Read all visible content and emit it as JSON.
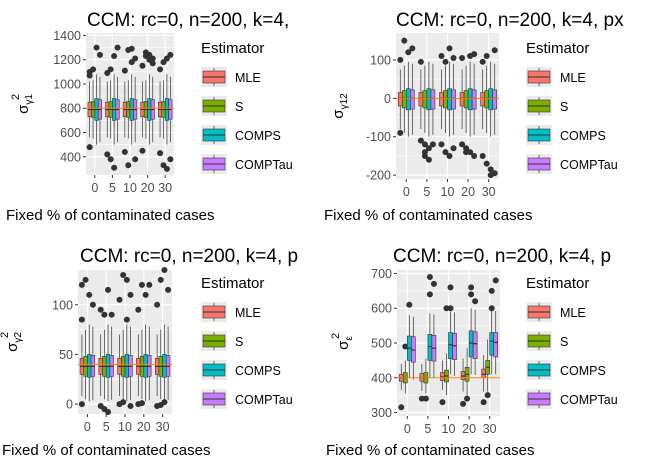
{
  "legend": {
    "title": "Estimator",
    "entries": [
      {
        "name": "MLE",
        "color": "#F8766D"
      },
      {
        "name": "S",
        "color": "#7CAE00"
      },
      {
        "name": "COMPS",
        "color": "#00BFC4"
      },
      {
        "name": "COMPTau",
        "color": "#C77CFF"
      }
    ]
  },
  "colors": {
    "panel_bg": "#EBEBEB",
    "grid": "#FFFFFF",
    "true_line": "#FF7F00",
    "outlier": "#333333",
    "box_stroke": "#333333"
  },
  "chart_data": [
    {
      "type": "box",
      "title": "CCM: rc=0, n=200, k=4,",
      "xlabel": "Fixed % of contaminated cases",
      "ylabel": {
        "base": "σ",
        "sup": "2",
        "sub": "γ1"
      },
      "categories": [
        "0",
        "5",
        "10",
        "20",
        "30"
      ],
      "ylim": [
        250,
        1420
      ],
      "yticks": [
        400,
        600,
        800,
        1000,
        1200,
        1400
      ],
      "reference_line": 800,
      "series": [
        {
          "name": "MLE",
          "q1": [
            730,
            730,
            730,
            730,
            730
          ],
          "median": [
            790,
            790,
            790,
            790,
            790
          ],
          "q3": [
            850,
            850,
            850,
            850,
            850
          ],
          "low": [
            560,
            560,
            560,
            560,
            560
          ],
          "high": [
            1020,
            1020,
            1020,
            1020,
            1020
          ],
          "outliers": [
            [
              480,
              1070,
              1100
            ],
            [
              420,
              1090
            ],
            [
              440,
              1110
            ],
            [
              450,
              1150
            ],
            [
              430,
              1120
            ]
          ]
        },
        {
          "name": "S",
          "q1": [
            725,
            725,
            725,
            725,
            725
          ],
          "median": [
            790,
            790,
            790,
            790,
            790
          ],
          "q3": [
            855,
            855,
            855,
            855,
            855
          ],
          "low": [
            550,
            550,
            550,
            550,
            550
          ],
          "high": [
            1030,
            1030,
            1030,
            1030,
            1030
          ],
          "outliers": [
            [
              1120
            ],
            [
              380,
              1120
            ],
            [
              330,
              1280
            ],
            [
              1230,
              1260
            ],
            [
              330,
              1180
            ]
          ]
        },
        {
          "name": "COMPS",
          "q1": [
            700,
            700,
            700,
            700,
            700
          ],
          "median": [
            790,
            790,
            790,
            790,
            790
          ],
          "q3": [
            880,
            880,
            880,
            880,
            880
          ],
          "low": [
            500,
            500,
            500,
            500,
            500
          ],
          "high": [
            1080,
            1080,
            1080,
            1080,
            1080
          ],
          "outliers": [
            [
              1300
            ],
            [
              310,
              1230
            ],
            [
              1290,
              1180
            ],
            [
              1200,
              1240
            ],
            [
              300,
              1210
            ]
          ]
        },
        {
          "name": "COMPTau",
          "q1": [
            710,
            710,
            710,
            710,
            710
          ],
          "median": [
            790,
            790,
            790,
            790,
            790
          ],
          "q3": [
            870,
            870,
            870,
            870,
            870
          ],
          "low": [
            520,
            520,
            520,
            520,
            520
          ],
          "high": [
            1060,
            1060,
            1060,
            1060,
            1060
          ],
          "outliers": [
            [
              1240
            ],
            [
              1300
            ],
            [
              380,
              1210
            ],
            [
              1170,
              1210
            ],
            [
              380,
              1240
            ]
          ]
        }
      ]
    },
    {
      "type": "box",
      "title": "CCM: rc=0, n=200, k=4, px",
      "xlabel": "Fixed % of contaminated cases",
      "ylabel": {
        "base": "σ",
        "sup": "",
        "sub": "γ12"
      },
      "categories": [
        "0",
        "5",
        "10",
        "20",
        "30"
      ],
      "ylim": [
        -210,
        170
      ],
      "yticks": [
        -200,
        -100,
        0,
        100
      ],
      "reference_line": 0,
      "series": [
        {
          "name": "MLE",
          "q1": [
            -20,
            -20,
            -20,
            -20,
            -20
          ],
          "median": [
            0,
            0,
            0,
            0,
            0
          ],
          "q3": [
            15,
            15,
            15,
            15,
            15
          ],
          "low": [
            -80,
            -80,
            -80,
            -80,
            -80
          ],
          "high": [
            75,
            75,
            75,
            75,
            75
          ],
          "outliers": [
            [
              -90,
              100
            ],
            [
              -110,
              95
            ],
            [
              -120,
              110
            ],
            [
              -120,
              105
            ],
            [
              -150,
              95
            ]
          ]
        },
        {
          "name": "S",
          "q1": [
            -25,
            -25,
            -25,
            -25,
            -25
          ],
          "median": [
            0,
            0,
            0,
            0,
            0
          ],
          "q3": [
            20,
            20,
            20,
            20,
            20
          ],
          "low": [
            -90,
            -90,
            -90,
            -90,
            -90
          ],
          "high": [
            85,
            85,
            85,
            85,
            85
          ],
          "outliers": [
            [
              150
            ],
            [
              -150,
              -140,
              -120
            ],
            [
              95,
              -140
            ],
            [
              -130,
              -140
            ],
            [
              -170,
              110
            ]
          ]
        },
        {
          "name": "COMPS",
          "q1": [
            -30,
            -30,
            -30,
            -30,
            -30
          ],
          "median": [
            0,
            0,
            0,
            0,
            0
          ],
          "q3": [
            25,
            25,
            25,
            25,
            25
          ],
          "low": [
            -100,
            -100,
            -100,
            -100,
            -100
          ],
          "high": [
            95,
            95,
            95,
            95,
            95
          ],
          "outliers": [
            [
              120
            ],
            [
              -160,
              -130
            ],
            [
              130,
              -150
            ],
            [
              110,
              -140
            ],
            [
              -185,
              -200
            ]
          ]
        },
        {
          "name": "COMPTau",
          "q1": [
            -28,
            -28,
            -28,
            -28,
            -28
          ],
          "median": [
            0,
            0,
            0,
            0,
            0
          ],
          "q3": [
            22,
            22,
            22,
            22,
            22
          ],
          "low": [
            -95,
            -95,
            -95,
            -95,
            -95
          ],
          "high": [
            90,
            90,
            90,
            90,
            90
          ],
          "outliers": [
            [
              130
            ],
            [
              -120
            ],
            [
              -130,
              105
            ],
            [
              -150,
              115
            ],
            [
              -195,
              125
            ]
          ]
        }
      ]
    },
    {
      "type": "box",
      "title": "CCM: rc=0, n=200, k=4, p",
      "xlabel": "Fixed % of contaminated cases",
      "ylabel": {
        "base": "σ",
        "sup": "2",
        "sub": "γ2"
      },
      "categories": [
        "0",
        "5",
        "10",
        "20",
        "30"
      ],
      "ylim": [
        -10,
        135
      ],
      "yticks": [
        0,
        50,
        100
      ],
      "reference_line": 40,
      "series": [
        {
          "name": "MLE",
          "q1": [
            30,
            30,
            30,
            30,
            30
          ],
          "median": [
            38,
            38,
            38,
            38,
            38
          ],
          "q3": [
            46,
            46,
            46,
            46,
            46
          ],
          "low": [
            8,
            8,
            8,
            8,
            8
          ],
          "high": [
            70,
            70,
            70,
            70,
            70
          ],
          "outliers": [
            [
              0,
              85,
              120
            ],
            [
              -2,
              95
            ],
            [
              0,
              105
            ],
            [
              0,
              95
            ],
            [
              -2,
              100
            ]
          ]
        },
        {
          "name": "S",
          "q1": [
            28,
            28,
            28,
            28,
            28
          ],
          "median": [
            38,
            38,
            38,
            38,
            38
          ],
          "q3": [
            48,
            48,
            48,
            48,
            48
          ],
          "low": [
            5,
            5,
            5,
            5,
            5
          ],
          "high": [
            75,
            75,
            75,
            75,
            75
          ],
          "outliers": [
            [
              125
            ],
            [
              -5,
              90
            ],
            [
              2,
              130
            ],
            [
              1,
              120
            ],
            [
              -1,
              125
            ]
          ]
        },
        {
          "name": "COMPS",
          "q1": [
            27,
            27,
            27,
            27,
            27
          ],
          "median": [
            38,
            38,
            38,
            38,
            38
          ],
          "q3": [
            50,
            50,
            50,
            50,
            50
          ],
          "low": [
            3,
            3,
            3,
            3,
            3
          ],
          "high": [
            80,
            80,
            80,
            80,
            80
          ],
          "outliers": [
            [
              110
            ],
            [
              -8,
              115
            ],
            [
              125,
              85
            ],
            [
              110
            ],
            [
              2,
              135
            ]
          ]
        },
        {
          "name": "COMPTau",
          "q1": [
            28,
            28,
            28,
            28,
            28
          ],
          "median": [
            38,
            38,
            38,
            38,
            38
          ],
          "q3": [
            49,
            49,
            49,
            49,
            49
          ],
          "low": [
            4,
            4,
            4,
            4,
            4
          ],
          "high": [
            78,
            78,
            78,
            78,
            78
          ],
          "outliers": [
            [
              100
            ],
            [
              90
            ],
            [
              -2,
              110
            ],
            [
              120
            ],
            [
              115
            ]
          ]
        }
      ]
    },
    {
      "type": "box",
      "title": "CCM: rc=0, n=200, k=4, p",
      "xlabel": "Fixed % of contaminated cases",
      "ylabel": {
        "base": "σ",
        "sup": "2",
        "sub": "ε"
      },
      "categories": [
        "0",
        "5",
        "10",
        "20",
        "30"
      ],
      "ylim": [
        290,
        710
      ],
      "yticks": [
        300,
        400,
        500,
        600,
        700
      ],
      "reference_line": 400,
      "series": [
        {
          "name": "MLE",
          "q1": [
            390,
            390,
            392,
            395,
            400
          ],
          "median": [
            400,
            400,
            402,
            405,
            410
          ],
          "q3": [
            410,
            412,
            415,
            418,
            425
          ],
          "low": [
            365,
            362,
            365,
            360,
            360
          ],
          "high": [
            440,
            440,
            450,
            455,
            465
          ],
          "outliers": [
            [
              315
            ],
            [
              340
            ],
            [
              330
            ],
            [
              325
            ],
            [
              330
            ]
          ]
        },
        {
          "name": "S",
          "q1": [
            385,
            385,
            388,
            390,
            410
          ],
          "median": [
            400,
            400,
            405,
            410,
            430
          ],
          "q3": [
            415,
            415,
            422,
            430,
            450
          ],
          "low": [
            355,
            355,
            350,
            345,
            360
          ],
          "high": [
            450,
            455,
            470,
            485,
            510
          ],
          "outliers": [
            [
              490
            ],
            [
              340
            ],
            [
              600
            ],
            [
              340
            ],
            [
              350
            ]
          ]
        },
        {
          "name": "COMPS",
          "q1": [
            450,
            450,
            455,
            460,
            465
          ],
          "median": [
            485,
            490,
            495,
            500,
            505
          ],
          "q3": [
            520,
            525,
            530,
            535,
            530
          ],
          "low": [
            400,
            400,
            410,
            410,
            410
          ],
          "high": [
            580,
            585,
            590,
            600,
            595
          ],
          "outliers": [
            [
              610
            ],
            [
              690,
              640
            ],
            [
              660,
              600
            ],
            [
              660,
              640
            ],
            [
              600,
              650
            ]
          ]
        },
        {
          "name": "COMPTau",
          "q1": [
            445,
            448,
            452,
            455,
            460
          ],
          "median": [
            480,
            485,
            492,
            498,
            502
          ],
          "q3": [
            518,
            522,
            528,
            532,
            530
          ],
          "low": [
            395,
            398,
            405,
            408,
            410
          ],
          "high": [
            575,
            582,
            588,
            595,
            592
          ],
          "outliers": [
            [],
            [
              670
            ],
            [],
            [
              620
            ],
            [
              680
            ]
          ]
        }
      ]
    }
  ]
}
